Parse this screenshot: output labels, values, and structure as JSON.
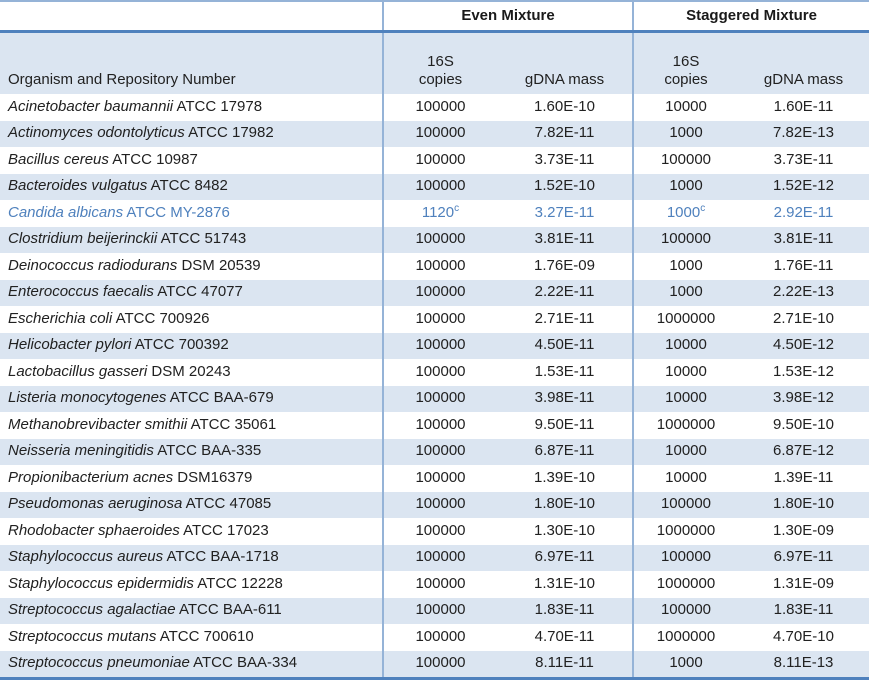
{
  "table": {
    "group_headers": [
      {
        "label": "Even Mixture"
      },
      {
        "label": "Staggered Mixture"
      }
    ],
    "col_headers": {
      "organism": "Organism and Repository Number",
      "copies_line1": "16S",
      "copies_line2": "copies",
      "gdna_even": "gDNA mass",
      "gdna_staggered": "gDNA mass"
    },
    "rows": [
      {
        "name": "Acinetobacter baumannii",
        "repo": "ATCC 17978",
        "even_copies": "100000",
        "even_copies_sup": "",
        "even_mass": "1.60E-10",
        "stag_copies": "10000",
        "stag_copies_sup": "",
        "stag_mass": "1.60E-11",
        "highlight": false
      },
      {
        "name": "Actinomyces odontolyticus",
        "repo": "ATCC 17982",
        "even_copies": "100000",
        "even_copies_sup": "",
        "even_mass": "7.82E-11",
        "stag_copies": "1000",
        "stag_copies_sup": "",
        "stag_mass": "7.82E-13",
        "highlight": false
      },
      {
        "name": "Bacillus cereus",
        "repo": "ATCC 10987",
        "even_copies": "100000",
        "even_copies_sup": "",
        "even_mass": "3.73E-11",
        "stag_copies": "100000",
        "stag_copies_sup": "",
        "stag_mass": "3.73E-11",
        "highlight": false
      },
      {
        "name": "Bacteroides vulgatus",
        "repo": "ATCC 8482",
        "even_copies": "100000",
        "even_copies_sup": "",
        "even_mass": "1.52E-10",
        "stag_copies": "1000",
        "stag_copies_sup": "",
        "stag_mass": "1.52E-12",
        "highlight": false
      },
      {
        "name": "Candida albicans",
        "repo": "ATCC MY-2876",
        "even_copies": "1120",
        "even_copies_sup": "c",
        "even_mass": "3.27E-11",
        "stag_copies": "1000",
        "stag_copies_sup": "c",
        "stag_mass": "2.92E-11",
        "highlight": true
      },
      {
        "name": "Clostridium beijerinckii",
        "repo": "ATCC 51743",
        "even_copies": "100000",
        "even_copies_sup": "",
        "even_mass": "3.81E-11",
        "stag_copies": "100000",
        "stag_copies_sup": "",
        "stag_mass": "3.81E-11",
        "highlight": false
      },
      {
        "name": "Deinococcus radiodurans",
        "repo": "DSM 20539",
        "even_copies": "100000",
        "even_copies_sup": "",
        "even_mass": "1.76E-09",
        "stag_copies": "1000",
        "stag_copies_sup": "",
        "stag_mass": "1.76E-11",
        "highlight": false
      },
      {
        "name": "Enterococcus faecalis",
        "repo": "ATCC 47077",
        "even_copies": "100000",
        "even_copies_sup": "",
        "even_mass": "2.22E-11",
        "stag_copies": "1000",
        "stag_copies_sup": "",
        "stag_mass": "2.22E-13",
        "highlight": false
      },
      {
        "name": "Escherichia coli",
        "repo": "ATCC 700926",
        "even_copies": "100000",
        "even_copies_sup": "",
        "even_mass": "2.71E-11",
        "stag_copies": "1000000",
        "stag_copies_sup": "",
        "stag_mass": "2.71E-10",
        "highlight": false
      },
      {
        "name": "Helicobacter pylori",
        "repo": "ATCC 700392",
        "even_copies": "100000",
        "even_copies_sup": "",
        "even_mass": "4.50E-11",
        "stag_copies": "10000",
        "stag_copies_sup": "",
        "stag_mass": "4.50E-12",
        "highlight": false
      },
      {
        "name": "Lactobacillus gasseri",
        "repo": "DSM 20243",
        "even_copies": "100000",
        "even_copies_sup": "",
        "even_mass": "1.53E-11",
        "stag_copies": "10000",
        "stag_copies_sup": "",
        "stag_mass": "1.53E-12",
        "highlight": false
      },
      {
        "name": "Listeria monocytogenes",
        "repo": "ATCC BAA-679",
        "even_copies": "100000",
        "even_copies_sup": "",
        "even_mass": "3.98E-11",
        "stag_copies": "10000",
        "stag_copies_sup": "",
        "stag_mass": "3.98E-12",
        "highlight": false
      },
      {
        "name": "Methanobrevibacter smithii",
        "repo": "ATCC 35061",
        "even_copies": "100000",
        "even_copies_sup": "",
        "even_mass": "9.50E-11",
        "stag_copies": "1000000",
        "stag_copies_sup": "",
        "stag_mass": "9.50E-10",
        "highlight": false
      },
      {
        "name": "Neisseria meningitidis",
        "repo": "ATCC BAA-335",
        "even_copies": "100000",
        "even_copies_sup": "",
        "even_mass": "6.87E-11",
        "stag_copies": "10000",
        "stag_copies_sup": "",
        "stag_mass": "6.87E-12",
        "highlight": false
      },
      {
        "name": "Propionibacterium acnes",
        "repo": "DSM16379",
        "even_copies": "100000",
        "even_copies_sup": "",
        "even_mass": "1.39E-10",
        "stag_copies": "10000",
        "stag_copies_sup": "",
        "stag_mass": "1.39E-11",
        "highlight": false
      },
      {
        "name": "Pseudomonas aeruginosa",
        "repo": "ATCC 47085",
        "even_copies": "100000",
        "even_copies_sup": "",
        "even_mass": "1.80E-10",
        "stag_copies": "100000",
        "stag_copies_sup": "",
        "stag_mass": "1.80E-10",
        "highlight": false
      },
      {
        "name": "Rhodobacter sphaeroides",
        "repo": "ATCC 17023",
        "even_copies": "100000",
        "even_copies_sup": "",
        "even_mass": "1.30E-10",
        "stag_copies": "1000000",
        "stag_copies_sup": "",
        "stag_mass": "1.30E-09",
        "highlight": false
      },
      {
        "name": "Staphylococcus aureus",
        "repo": "ATCC BAA-1718",
        "even_copies": "100000",
        "even_copies_sup": "",
        "even_mass": "6.97E-11",
        "stag_copies": "100000",
        "stag_copies_sup": "",
        "stag_mass": "6.97E-11",
        "highlight": false
      },
      {
        "name": "Staphylococcus epidermidis",
        "repo": "ATCC 12228",
        "even_copies": "100000",
        "even_copies_sup": "",
        "even_mass": "1.31E-10",
        "stag_copies": "1000000",
        "stag_copies_sup": "",
        "stag_mass": "1.31E-09",
        "highlight": false
      },
      {
        "name": "Streptococcus agalactiae",
        "repo": "ATCC BAA-611",
        "even_copies": "100000",
        "even_copies_sup": "",
        "even_mass": "1.83E-11",
        "stag_copies": "100000",
        "stag_copies_sup": "",
        "stag_mass": "1.83E-11",
        "highlight": false
      },
      {
        "name": "Streptococcus mutans",
        "repo": "ATCC 700610",
        "even_copies": "100000",
        "even_copies_sup": "",
        "even_mass": "4.70E-11",
        "stag_copies": "1000000",
        "stag_copies_sup": "",
        "stag_mass": "4.70E-10",
        "highlight": false
      },
      {
        "name": "Streptococcus pneumoniae",
        "repo": "ATCC BAA-334",
        "even_copies": "100000",
        "even_copies_sup": "",
        "even_mass": "8.11E-11",
        "stag_copies": "1000",
        "stag_copies_sup": "",
        "stag_mass": "8.11E-13",
        "highlight": false
      }
    ]
  },
  "colors": {
    "stripe": "#dbe5f1",
    "grid_line": "#95b3d7",
    "thick_line": "#4f81bd",
    "highlight_text": "#4f81bd",
    "text": "#212121"
  }
}
